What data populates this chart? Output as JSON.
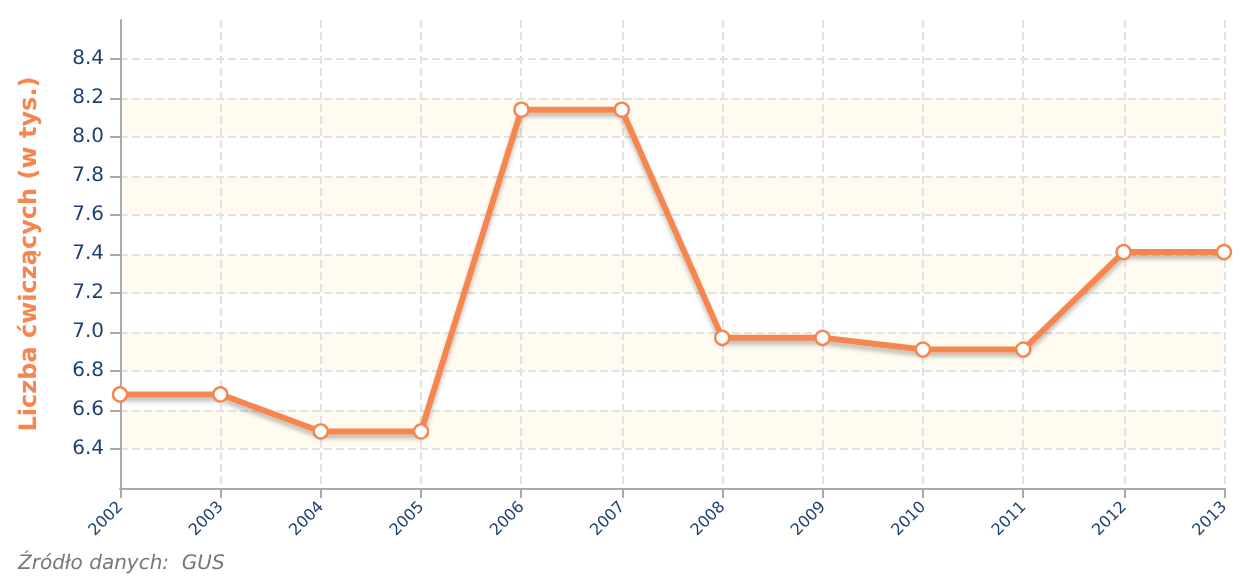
{
  "chart_data": {
    "type": "line",
    "ylabel": "Liczba ćwiczących (w tys.)",
    "categories": [
      "2002",
      "2003",
      "2004",
      "2005",
      "2006",
      "2007",
      "2008",
      "2009",
      "2010",
      "2011",
      "2012",
      "2013"
    ],
    "series": [
      {
        "color": "#f5864f",
        "values": [
          6.68,
          6.68,
          6.49,
          6.49,
          8.14,
          8.14,
          6.97,
          6.97,
          6.91,
          6.91,
          7.41,
          7.41
        ]
      }
    ],
    "ylim": [
      6.2,
      8.6
    ],
    "yticks": [
      6.4,
      6.6,
      6.8,
      {
        "value": 7,
        "label": "7.0"
      },
      7.2,
      7.4,
      7.6,
      7.8,
      {
        "value": 8,
        "label": "8.0"
      },
      8.2,
      8.4
    ],
    "grid": true,
    "marker": "circle",
    "line_style": "solid",
    "annotations": [
      "Źródło danych:  GUS"
    ]
  }
}
